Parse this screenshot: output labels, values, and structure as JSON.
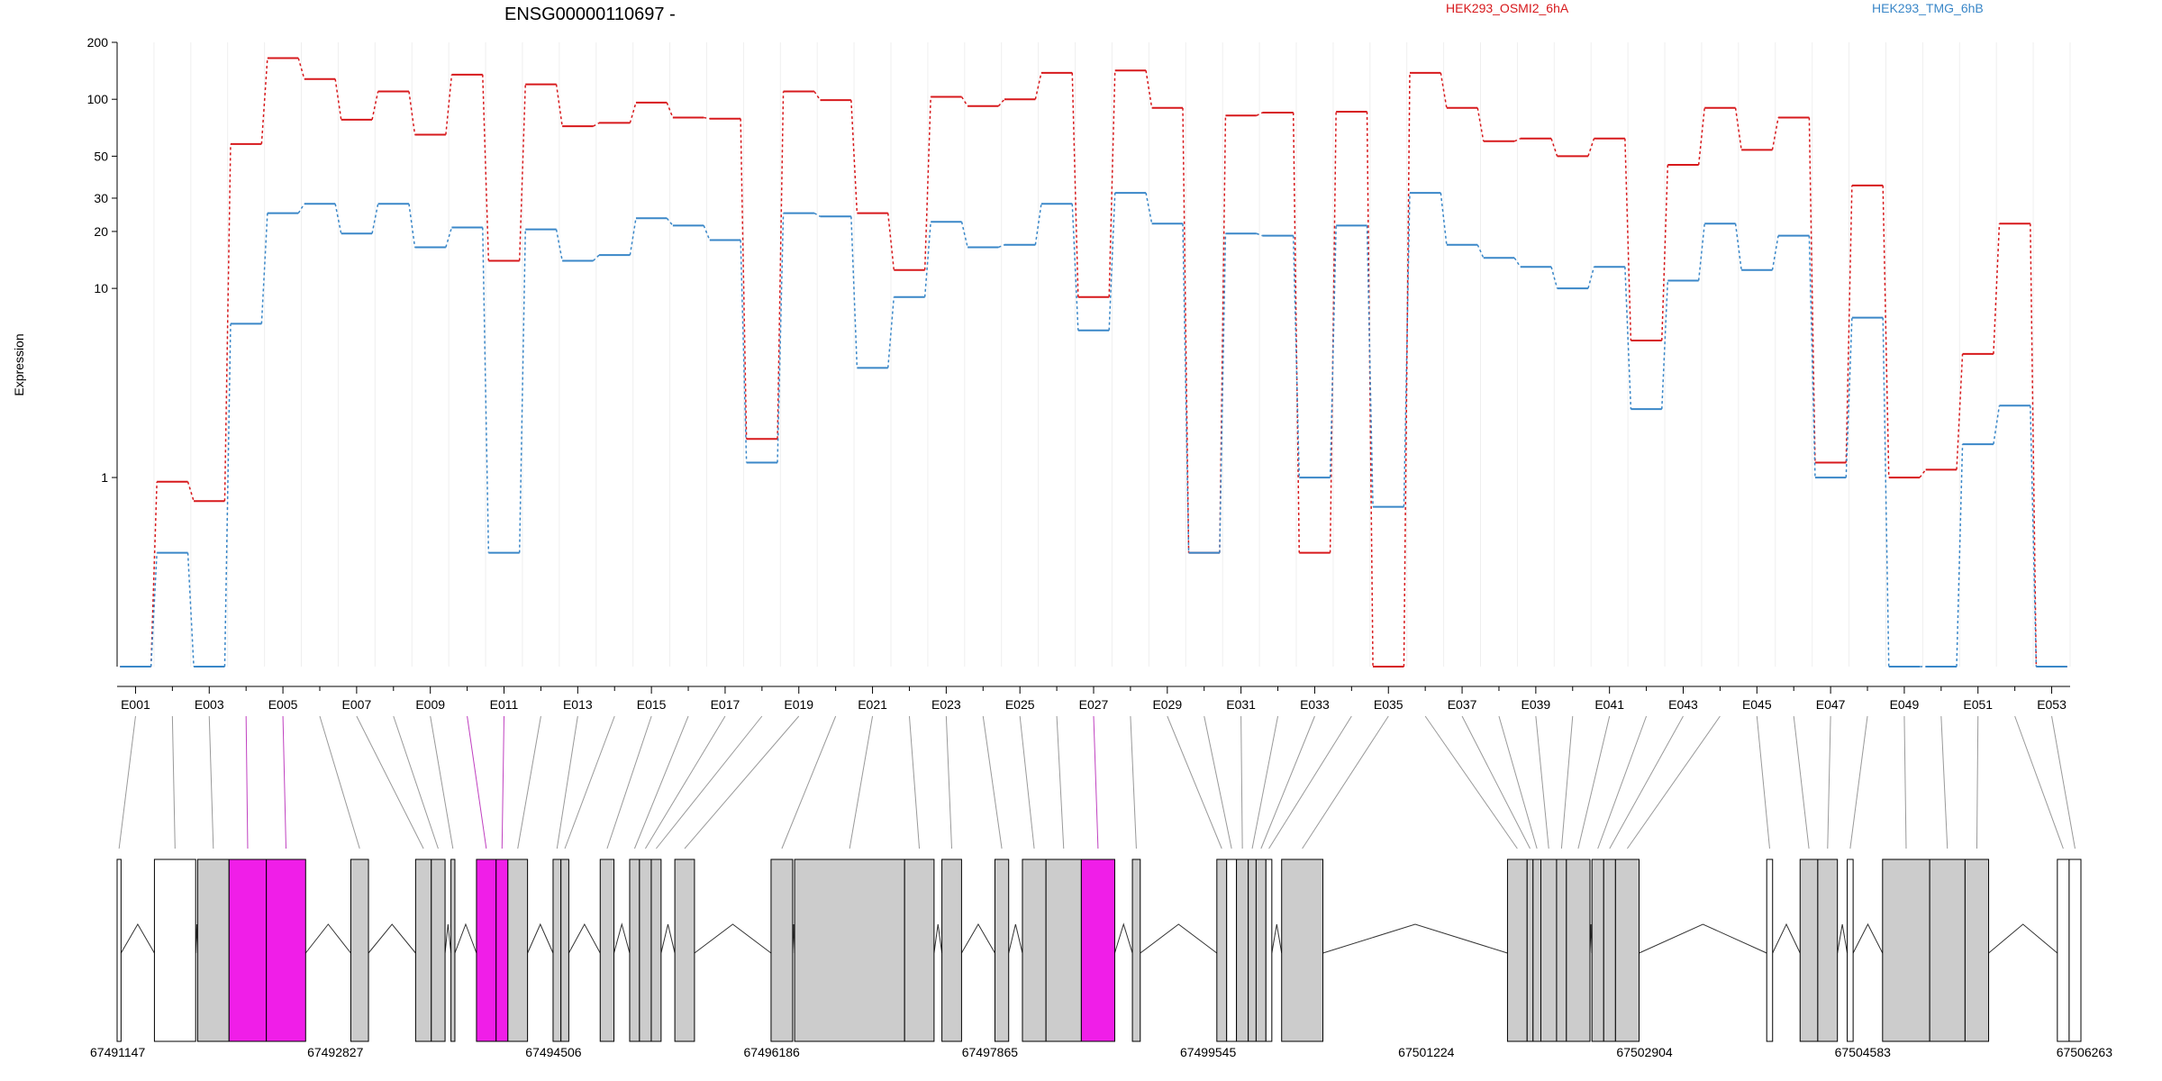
{
  "chart_data": {
    "type": "line",
    "title": "ENSG00000110697 -",
    "ylabel": "Expression",
    "yscale": "log",
    "ylim": [
      0.1,
      200
    ],
    "yticks": [
      {
        "value": 1,
        "label": "1"
      },
      {
        "value": 10,
        "label": "10"
      },
      {
        "value": 20,
        "label": "20"
      },
      {
        "value": 30,
        "label": "30"
      },
      {
        "value": 50,
        "label": "50"
      },
      {
        "value": 100,
        "label": "100"
      },
      {
        "value": 200,
        "label": "200"
      }
    ],
    "exons": [
      "E001",
      "E002",
      "E003",
      "E004",
      "E005",
      "E006",
      "E007",
      "E008",
      "E009",
      "E010",
      "E011",
      "E012",
      "E013",
      "E014",
      "E015",
      "E016",
      "E017",
      "E018",
      "E019",
      "E020",
      "E021",
      "E022",
      "E023",
      "E024",
      "E025",
      "E026",
      "E027",
      "E028",
      "E029",
      "E030",
      "E031",
      "E032",
      "E033",
      "E034",
      "E035",
      "E036",
      "E037",
      "E038",
      "E039",
      "E040",
      "E041",
      "E042",
      "E043",
      "E044",
      "E045",
      "E046",
      "E047",
      "E048",
      "E049",
      "E050",
      "E051",
      "E052",
      "E053"
    ],
    "exon_tick_labels": [
      "E001",
      "E003",
      "E005",
      "E007",
      "E009",
      "E011",
      "E013",
      "E015",
      "E017",
      "E019",
      "E021",
      "E023",
      "E025",
      "E027",
      "E029",
      "E031",
      "E033",
      "E035",
      "E037",
      "E039",
      "E041",
      "E043",
      "E045",
      "E047",
      "E049",
      "E051",
      "E053"
    ],
    "series": [
      {
        "name": "HEK293_OSMI2_6hA",
        "color": "#d7191c",
        "values": [
          0.1,
          0.95,
          0.75,
          58,
          165,
          128,
          78,
          110,
          65,
          135,
          14,
          120,
          72,
          75,
          96,
          80,
          79,
          1.6,
          110,
          99,
          25,
          12.5,
          103,
          92,
          100,
          138,
          9,
          142,
          90,
          0.4,
          82,
          85,
          0.4,
          86,
          0.1,
          138,
          90,
          60,
          62,
          50,
          62,
          5.3,
          45,
          90,
          54,
          80,
          1.2,
          35,
          1,
          1.1,
          4.5,
          22,
          0.1
        ]
      },
      {
        "name": "HEK293_TMG_6hB",
        "color": "#3a87c8",
        "values": [
          0.1,
          0.4,
          0.1,
          6.5,
          25,
          28,
          19.5,
          28,
          16.5,
          21,
          0.4,
          20.5,
          14,
          15,
          23.5,
          21.5,
          18,
          1.2,
          25,
          24,
          3.8,
          9,
          22.5,
          16.5,
          17,
          28,
          6,
          32,
          22,
          0.4,
          19.5,
          19,
          1,
          21.5,
          0.7,
          32,
          17,
          14.5,
          13,
          10,
          13,
          2.3,
          11,
          22,
          12.5,
          19,
          1,
          7,
          0.1,
          0.1,
          1.5,
          2.4,
          0.1
        ]
      }
    ],
    "gene_track": {
      "start_label": "67491147",
      "end_label": "67506263",
      "coordinate_labels": [
        "67491147",
        "67492827",
        "67494506",
        "67496186",
        "67497865",
        "67499545",
        "67501224",
        "67502904",
        "67504583",
        "67506263"
      ],
      "highlighted_exons": [
        "E004",
        "E005",
        "E010",
        "E011",
        "E027"
      ],
      "highlight_color": "#f01ee8",
      "exon_color": "#cccccc"
    }
  }
}
